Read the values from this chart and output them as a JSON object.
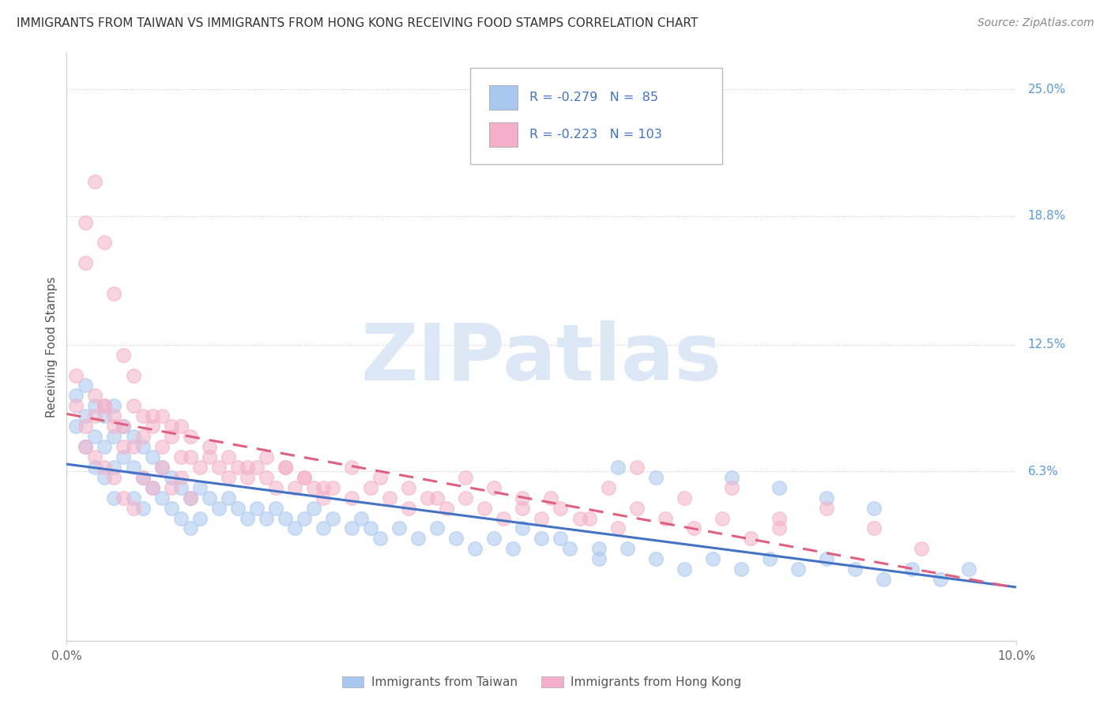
{
  "title": "IMMIGRANTS FROM TAIWAN VS IMMIGRANTS FROM HONG KONG RECEIVING FOOD STAMPS CORRELATION CHART",
  "source": "Source: ZipAtlas.com",
  "ylabel": "Receiving Food Stamps",
  "ytick_labels": [
    "6.3%",
    "12.5%",
    "18.8%",
    "25.0%"
  ],
  "ytick_values": [
    0.063,
    0.125,
    0.188,
    0.25
  ],
  "xmin": 0.0,
  "xmax": 0.1,
  "ymin": -0.02,
  "ymax": 0.268,
  "color_taiwan": "#a8c8f0",
  "color_hk": "#f4b0c8",
  "color_taiwan_line": "#4472c4",
  "color_hk_line": "#e06080",
  "watermark_color": "#dce8f5",
  "R_taiwan": -0.279,
  "N_taiwan": 85,
  "R_hk": -0.223,
  "N_hk": 103,
  "taiwan_x": [
    0.001,
    0.001,
    0.002,
    0.002,
    0.002,
    0.003,
    0.003,
    0.003,
    0.004,
    0.004,
    0.004,
    0.005,
    0.005,
    0.005,
    0.005,
    0.006,
    0.006,
    0.007,
    0.007,
    0.007,
    0.008,
    0.008,
    0.008,
    0.009,
    0.009,
    0.01,
    0.01,
    0.011,
    0.011,
    0.012,
    0.012,
    0.013,
    0.013,
    0.014,
    0.014,
    0.015,
    0.016,
    0.017,
    0.018,
    0.019,
    0.02,
    0.021,
    0.022,
    0.023,
    0.024,
    0.025,
    0.026,
    0.027,
    0.028,
    0.03,
    0.031,
    0.032,
    0.033,
    0.035,
    0.037,
    0.039,
    0.041,
    0.043,
    0.045,
    0.047,
    0.05,
    0.053,
    0.056,
    0.059,
    0.062,
    0.065,
    0.068,
    0.071,
    0.074,
    0.077,
    0.08,
    0.083,
    0.086,
    0.089,
    0.092,
    0.095,
    0.07,
    0.075,
    0.08,
    0.085,
    0.058,
    0.062,
    0.048,
    0.052,
    0.056
  ],
  "taiwan_y": [
    0.1,
    0.085,
    0.105,
    0.09,
    0.075,
    0.095,
    0.08,
    0.065,
    0.09,
    0.075,
    0.06,
    0.095,
    0.08,
    0.065,
    0.05,
    0.085,
    0.07,
    0.08,
    0.065,
    0.05,
    0.075,
    0.06,
    0.045,
    0.07,
    0.055,
    0.065,
    0.05,
    0.06,
    0.045,
    0.055,
    0.04,
    0.05,
    0.035,
    0.055,
    0.04,
    0.05,
    0.045,
    0.05,
    0.045,
    0.04,
    0.045,
    0.04,
    0.045,
    0.04,
    0.035,
    0.04,
    0.045,
    0.035,
    0.04,
    0.035,
    0.04,
    0.035,
    0.03,
    0.035,
    0.03,
    0.035,
    0.03,
    0.025,
    0.03,
    0.025,
    0.03,
    0.025,
    0.02,
    0.025,
    0.02,
    0.015,
    0.02,
    0.015,
    0.02,
    0.015,
    0.02,
    0.015,
    0.01,
    0.015,
    0.01,
    0.015,
    0.06,
    0.055,
    0.05,
    0.045,
    0.065,
    0.06,
    0.035,
    0.03,
    0.025
  ],
  "hk_x": [
    0.001,
    0.001,
    0.002,
    0.002,
    0.002,
    0.003,
    0.003,
    0.003,
    0.004,
    0.004,
    0.004,
    0.005,
    0.005,
    0.005,
    0.006,
    0.006,
    0.006,
    0.007,
    0.007,
    0.007,
    0.008,
    0.008,
    0.009,
    0.009,
    0.01,
    0.01,
    0.011,
    0.011,
    0.012,
    0.012,
    0.013,
    0.013,
    0.014,
    0.015,
    0.016,
    0.017,
    0.018,
    0.019,
    0.02,
    0.021,
    0.022,
    0.023,
    0.024,
    0.025,
    0.026,
    0.027,
    0.028,
    0.03,
    0.032,
    0.034,
    0.036,
    0.038,
    0.04,
    0.042,
    0.044,
    0.046,
    0.048,
    0.05,
    0.052,
    0.055,
    0.058,
    0.002,
    0.003,
    0.004,
    0.005,
    0.006,
    0.007,
    0.008,
    0.009,
    0.01,
    0.011,
    0.012,
    0.013,
    0.015,
    0.017,
    0.019,
    0.021,
    0.023,
    0.025,
    0.027,
    0.03,
    0.033,
    0.036,
    0.039,
    0.042,
    0.045,
    0.048,
    0.051,
    0.054,
    0.057,
    0.06,
    0.063,
    0.066,
    0.069,
    0.072,
    0.075,
    0.06,
    0.065,
    0.07,
    0.075,
    0.08,
    0.085,
    0.09
  ],
  "hk_y": [
    0.095,
    0.11,
    0.185,
    0.165,
    0.075,
    0.205,
    0.09,
    0.07,
    0.175,
    0.095,
    0.065,
    0.15,
    0.085,
    0.06,
    0.12,
    0.075,
    0.05,
    0.11,
    0.075,
    0.045,
    0.09,
    0.06,
    0.085,
    0.055,
    0.09,
    0.065,
    0.08,
    0.055,
    0.085,
    0.06,
    0.07,
    0.05,
    0.065,
    0.07,
    0.065,
    0.06,
    0.065,
    0.06,
    0.065,
    0.06,
    0.055,
    0.065,
    0.055,
    0.06,
    0.055,
    0.05,
    0.055,
    0.05,
    0.055,
    0.05,
    0.045,
    0.05,
    0.045,
    0.05,
    0.045,
    0.04,
    0.05,
    0.04,
    0.045,
    0.04,
    0.035,
    0.085,
    0.1,
    0.095,
    0.09,
    0.085,
    0.095,
    0.08,
    0.09,
    0.075,
    0.085,
    0.07,
    0.08,
    0.075,
    0.07,
    0.065,
    0.07,
    0.065,
    0.06,
    0.055,
    0.065,
    0.06,
    0.055,
    0.05,
    0.06,
    0.055,
    0.045,
    0.05,
    0.04,
    0.055,
    0.045,
    0.04,
    0.035,
    0.04,
    0.03,
    0.035,
    0.065,
    0.05,
    0.055,
    0.04,
    0.045,
    0.035,
    0.025
  ]
}
